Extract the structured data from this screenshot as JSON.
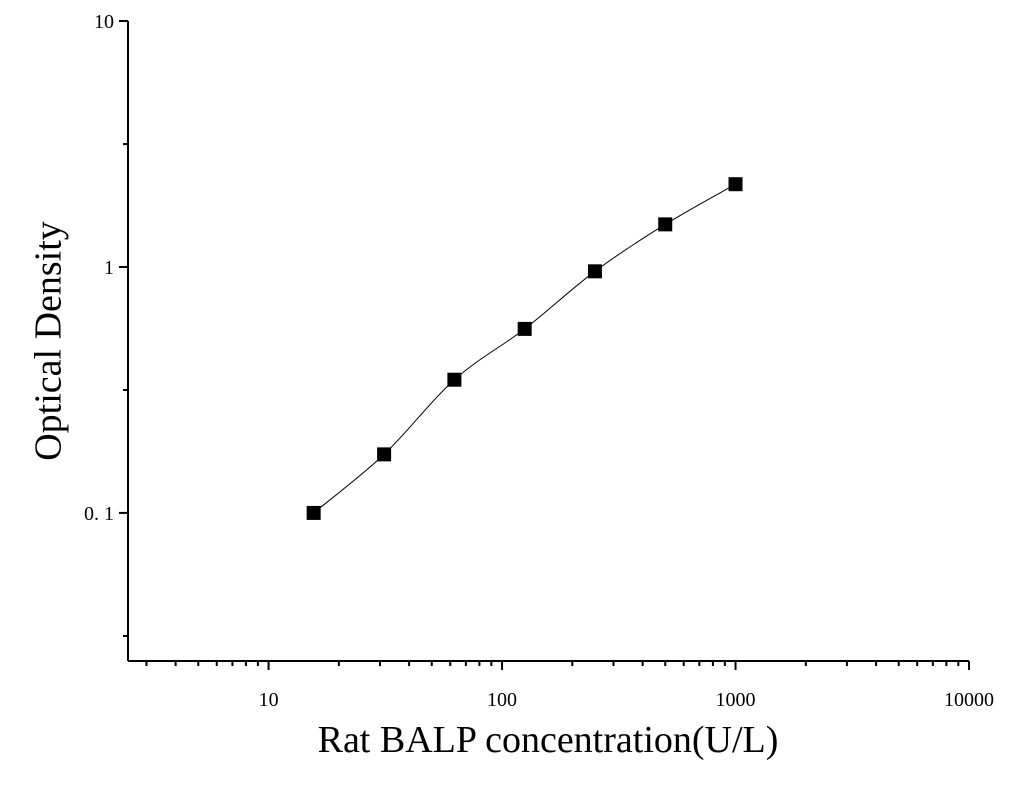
{
  "chart_data": {
    "type": "scatter",
    "x_label": "Rat BALP concentration(U/L)",
    "y_label": "Optical Density",
    "x": [
      15.6,
      31.25,
      62.5,
      125,
      250,
      500,
      1000
    ],
    "values": [
      0.1,
      0.173,
      0.348,
      0.56,
      0.96,
      1.49,
      2.17
    ],
    "color": "#000000",
    "marker": "square",
    "fit_line": true,
    "xscale": "log",
    "yscale": "log",
    "xlim": [
      2.5,
      10000
    ],
    "ylim": [
      0.025,
      10
    ],
    "xticks": [
      10,
      100,
      1000,
      10000
    ],
    "yticks": [
      {
        "value": 0.1,
        "label": "0. 1"
      },
      1,
      10
    ],
    "xminorticks": [
      3,
      4,
      5,
      6,
      7,
      8,
      9,
      20,
      30,
      40,
      50,
      60,
      70,
      80,
      90,
      200,
      300,
      400,
      500,
      600,
      700,
      800,
      900,
      2000,
      3000,
      4000,
      5000,
      6000,
      7000,
      8000,
      9000
    ],
    "yminorticks": [
      0.0316,
      0.316,
      3.16
    ]
  }
}
